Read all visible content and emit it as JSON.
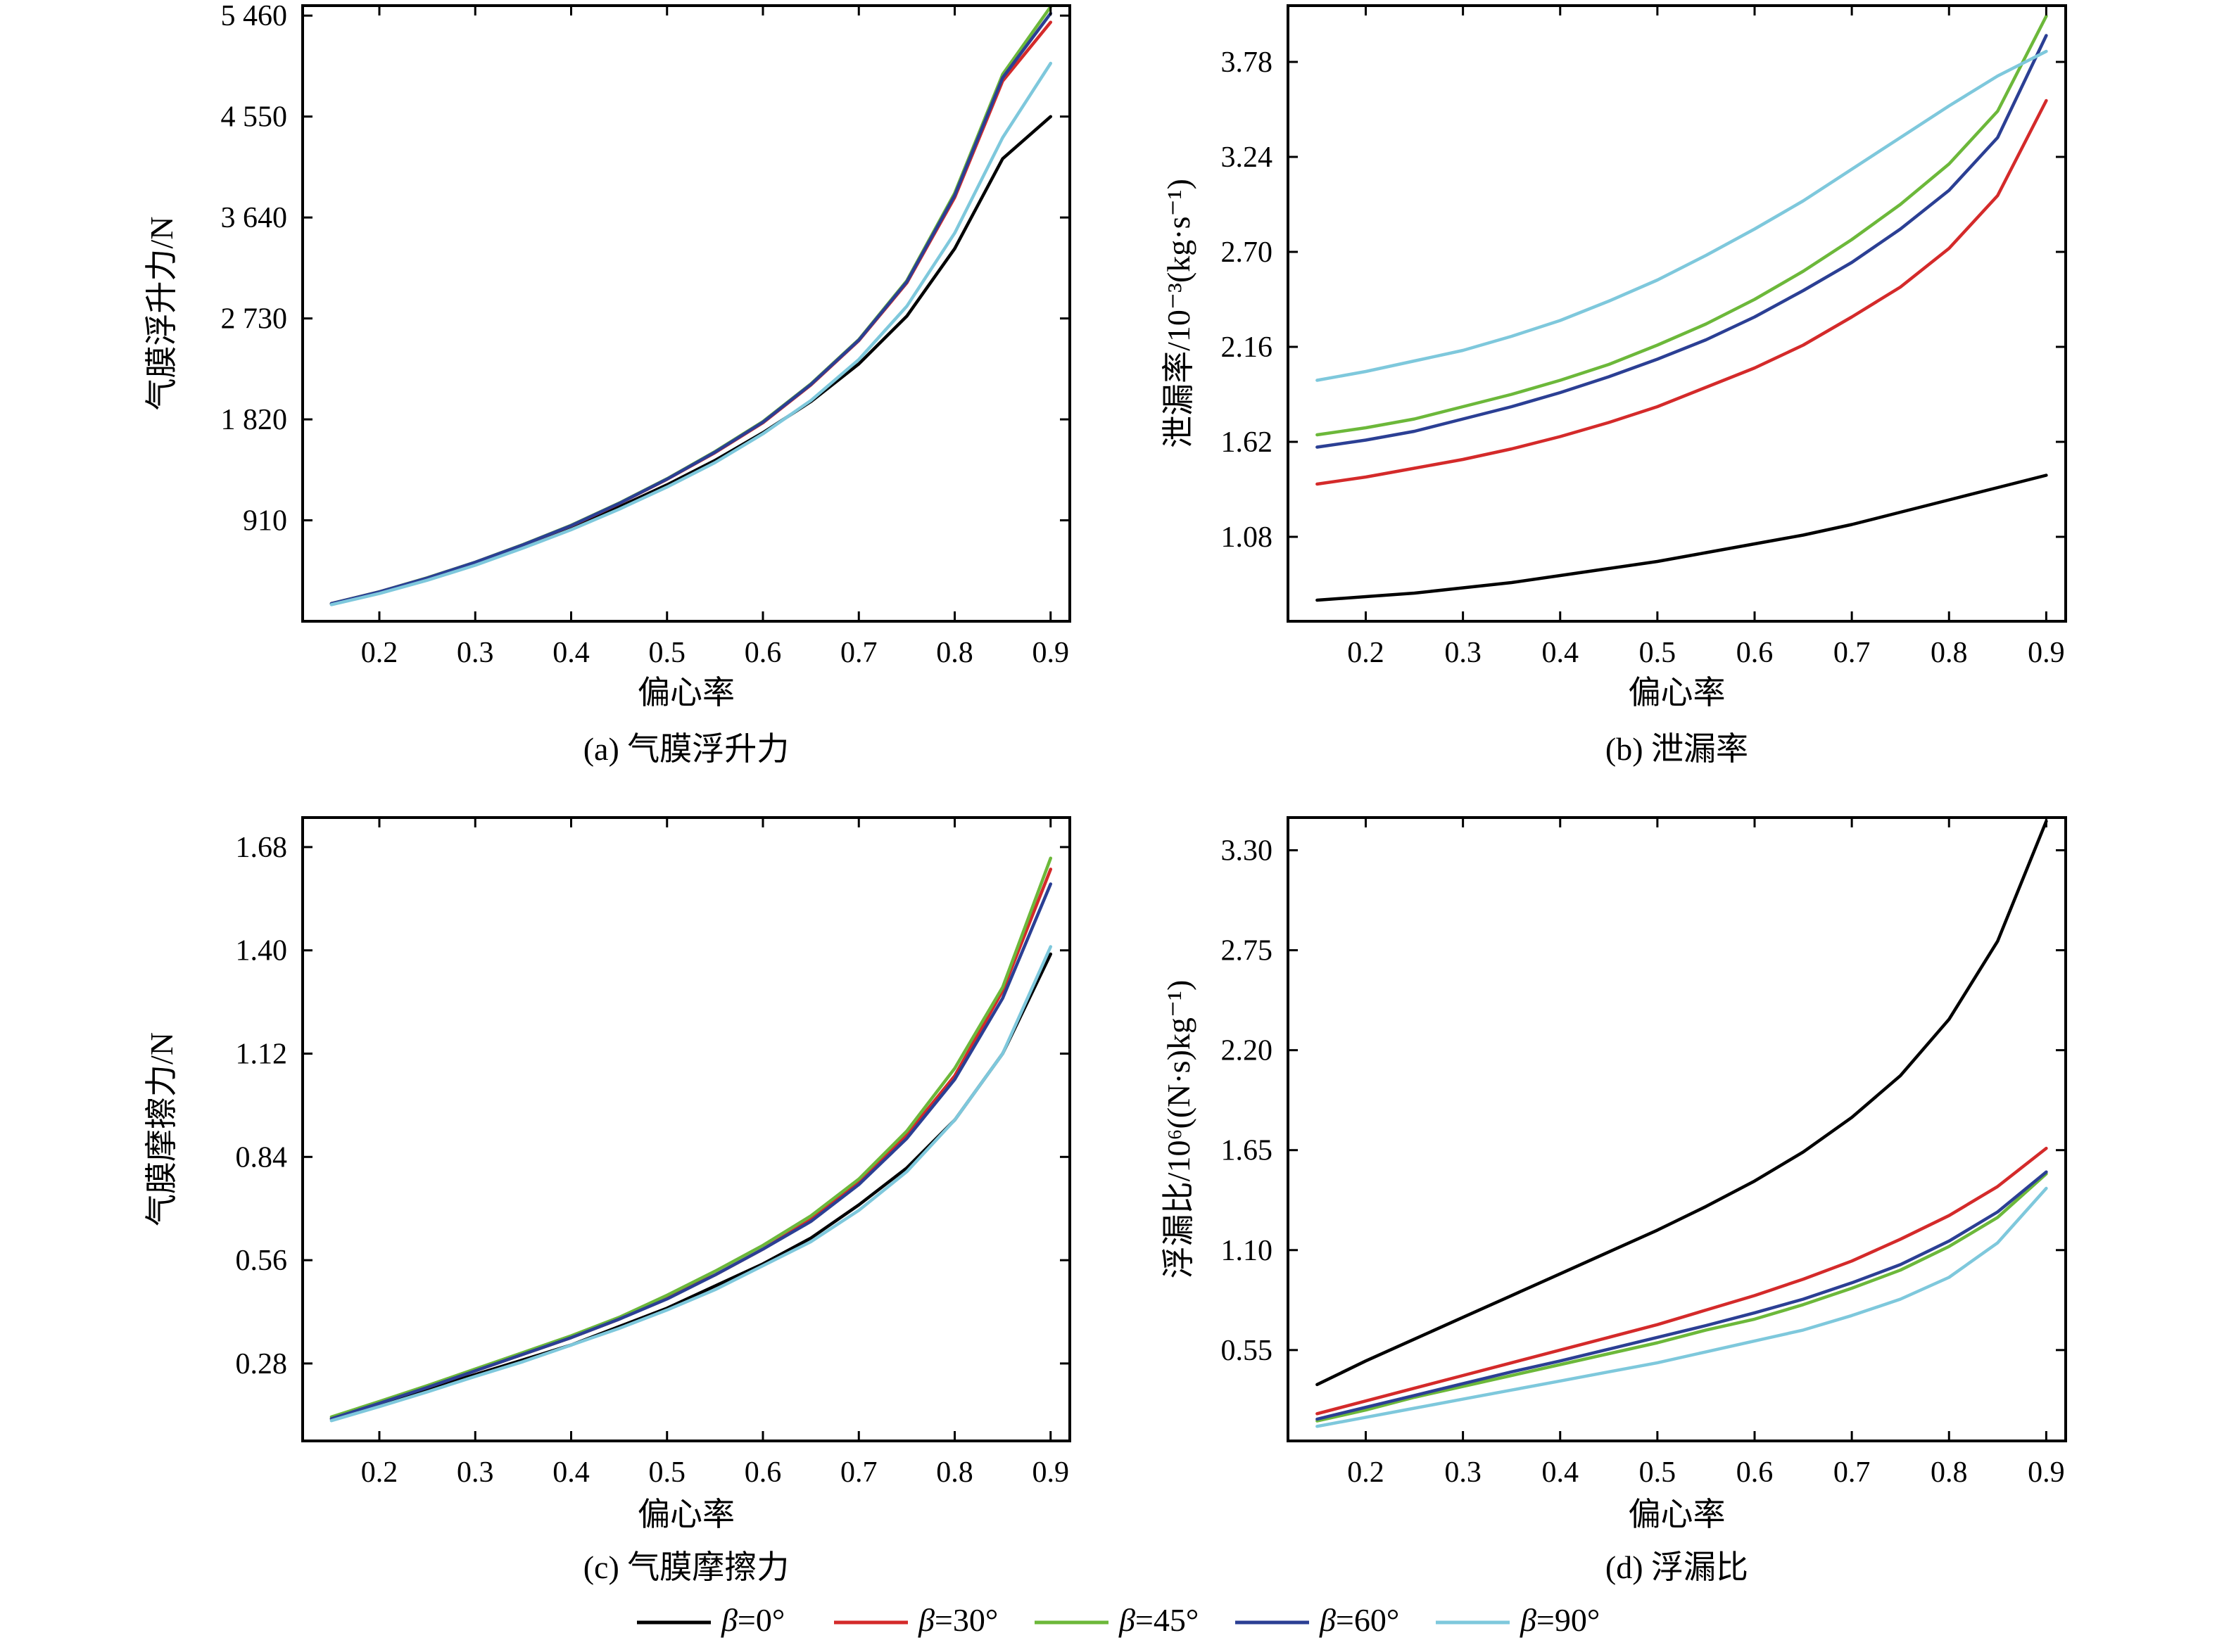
{
  "colors": {
    "b0": "#000000",
    "b30": "#d42a2a",
    "b45": "#6cb83a",
    "b60": "#2b3f94",
    "b90": "#7ec8dc"
  },
  "legend": [
    {
      "key": "b0",
      "prefix": "β",
      "label": "=0°"
    },
    {
      "key": "b30",
      "prefix": "β",
      "label": "=30°"
    },
    {
      "key": "b45",
      "prefix": "β",
      "label": "=45°"
    },
    {
      "key": "b60",
      "prefix": "β",
      "label": "=60°"
    },
    {
      "key": "b90",
      "prefix": "β",
      "label": "=90°"
    }
  ],
  "chart_data": [
    {
      "type": "line",
      "caption": "(a) 气膜浮升力",
      "xlabel": "偏心率",
      "ylabel": "气膜浮升力/N",
      "xlim": [
        0.12,
        0.92
      ],
      "ylim": [
        0,
        5550
      ],
      "xticks": [
        0.2,
        0.3,
        0.4,
        0.5,
        0.6,
        0.7,
        0.8,
        0.9
      ],
      "xtick_labels": [
        "0.2",
        "0.3",
        "0.4",
        "0.5",
        "0.6",
        "0.7",
        "0.8",
        "0.9"
      ],
      "yticks": [
        910,
        1820,
        2730,
        3640,
        4550,
        5460
      ],
      "ytick_labels": [
        "910",
        "1 820",
        "2 730",
        "3 640",
        "4 550",
        "5 460"
      ],
      "x": [
        0.15,
        0.2,
        0.25,
        0.3,
        0.35,
        0.4,
        0.45,
        0.5,
        0.55,
        0.6,
        0.65,
        0.7,
        0.75,
        0.8,
        0.85,
        0.9
      ],
      "series": [
        {
          "key": "b0",
          "name": "β=0°",
          "values": [
            155,
            260,
            380,
            520,
            670,
            840,
            1030,
            1230,
            1450,
            1700,
            1980,
            2320,
            2750,
            3360,
            4170,
            4550
          ]
        },
        {
          "key": "b30",
          "name": "β=30°",
          "values": [
            160,
            265,
            390,
            530,
            690,
            860,
            1060,
            1280,
            1520,
            1790,
            2130,
            2530,
            3050,
            3820,
            4870,
            5400
          ]
        },
        {
          "key": "b45",
          "name": "β=45°",
          "values": [
            160,
            266,
            392,
            533,
            692,
            865,
            1065,
            1285,
            1530,
            1800,
            2140,
            2540,
            3070,
            3860,
            4930,
            5540
          ]
        },
        {
          "key": "b60",
          "name": "β=60°",
          "values": [
            160,
            265,
            390,
            532,
            690,
            862,
            1062,
            1282,
            1525,
            1795,
            2135,
            2535,
            3060,
            3840,
            4900,
            5480
          ]
        },
        {
          "key": "b90",
          "name": "β=90°",
          "values": [
            150,
            250,
            370,
            505,
            660,
            825,
            1010,
            1210,
            1430,
            1690,
            1990,
            2360,
            2840,
            3500,
            4360,
            5030
          ]
        }
      ]
    },
    {
      "type": "line",
      "caption": "(b) 泄漏率",
      "xlabel": "偏心率",
      "ylabel": "泄漏率/10⁻³(kg·s⁻¹)",
      "xlim": [
        0.12,
        0.92
      ],
      "ylim": [
        0.6,
        4.1
      ],
      "xticks": [
        0.2,
        0.3,
        0.4,
        0.5,
        0.6,
        0.7,
        0.8,
        0.9
      ],
      "xtick_labels": [
        "0.2",
        "0.3",
        "0.4",
        "0.5",
        "0.6",
        "0.7",
        "0.8",
        "0.9"
      ],
      "yticks": [
        1.08,
        1.62,
        2.16,
        2.7,
        3.24,
        3.78
      ],
      "ytick_labels": [
        "1.08",
        "1.62",
        "2.16",
        "2.70",
        "3.24",
        "3.78"
      ],
      "x": [
        0.15,
        0.2,
        0.25,
        0.3,
        0.35,
        0.4,
        0.45,
        0.5,
        0.55,
        0.6,
        0.65,
        0.7,
        0.75,
        0.8,
        0.85,
        0.9
      ],
      "series": [
        {
          "key": "b0",
          "name": "β=0°",
          "values": [
            0.72,
            0.74,
            0.76,
            0.79,
            0.82,
            0.86,
            0.9,
            0.94,
            0.99,
            1.04,
            1.09,
            1.15,
            1.22,
            1.29,
            1.36,
            1.43
          ]
        },
        {
          "key": "b30",
          "name": "β=30°",
          "values": [
            1.38,
            1.42,
            1.47,
            1.52,
            1.58,
            1.65,
            1.73,
            1.82,
            1.93,
            2.04,
            2.17,
            2.33,
            2.5,
            2.72,
            3.02,
            3.56
          ]
        },
        {
          "key": "b45",
          "name": "β=45°",
          "values": [
            1.66,
            1.7,
            1.75,
            1.82,
            1.89,
            1.97,
            2.06,
            2.17,
            2.29,
            2.43,
            2.59,
            2.77,
            2.97,
            3.2,
            3.5,
            4.04
          ]
        },
        {
          "key": "b60",
          "name": "β=60°",
          "values": [
            1.59,
            1.63,
            1.68,
            1.75,
            1.82,
            1.9,
            1.99,
            2.09,
            2.2,
            2.33,
            2.48,
            2.64,
            2.83,
            3.05,
            3.35,
            3.93
          ]
        },
        {
          "key": "b90",
          "name": "β=90°",
          "values": [
            1.97,
            2.02,
            2.08,
            2.14,
            2.22,
            2.31,
            2.42,
            2.54,
            2.68,
            2.83,
            2.99,
            3.17,
            3.35,
            3.53,
            3.7,
            3.84
          ]
        }
      ]
    },
    {
      "type": "line",
      "caption": "(c) 气膜摩擦力",
      "xlabel": "偏心率",
      "ylabel": "气膜摩擦力/N",
      "xlim": [
        0.12,
        0.92
      ],
      "ylim": [
        0.07,
        1.76
      ],
      "xticks": [
        0.2,
        0.3,
        0.4,
        0.5,
        0.6,
        0.7,
        0.8,
        0.9
      ],
      "xtick_labels": [
        "0.2",
        "0.3",
        "0.4",
        "0.5",
        "0.6",
        "0.7",
        "0.8",
        "0.9"
      ],
      "yticks": [
        0.28,
        0.56,
        0.84,
        1.12,
        1.4,
        1.68
      ],
      "ytick_labels": [
        "0.28",
        "0.56",
        "0.84",
        "1.12",
        "1.40",
        "1.68"
      ],
      "x": [
        0.15,
        0.2,
        0.25,
        0.3,
        0.35,
        0.4,
        0.45,
        0.5,
        0.55,
        0.6,
        0.65,
        0.7,
        0.75,
        0.8,
        0.85,
        0.9
      ],
      "series": [
        {
          "key": "b0",
          "name": "β=0°",
          "values": [
            0.13,
            0.17,
            0.21,
            0.25,
            0.29,
            0.33,
            0.38,
            0.43,
            0.49,
            0.55,
            0.62,
            0.71,
            0.81,
            0.94,
            1.12,
            1.39
          ]
        },
        {
          "key": "b30",
          "name": "β=30°",
          "values": [
            0.13,
            0.175,
            0.215,
            0.26,
            0.305,
            0.35,
            0.4,
            0.46,
            0.52,
            0.59,
            0.67,
            0.77,
            0.9,
            1.06,
            1.29,
            1.62
          ]
        },
        {
          "key": "b45",
          "name": "β=45°",
          "values": [
            0.135,
            0.177,
            0.22,
            0.265,
            0.31,
            0.355,
            0.405,
            0.465,
            0.53,
            0.6,
            0.68,
            0.78,
            0.91,
            1.08,
            1.3,
            1.65
          ]
        },
        {
          "key": "b60",
          "name": "β=60°",
          "values": [
            0.13,
            0.172,
            0.215,
            0.26,
            0.305,
            0.35,
            0.4,
            0.455,
            0.52,
            0.59,
            0.665,
            0.765,
            0.89,
            1.05,
            1.27,
            1.58
          ]
        },
        {
          "key": "b90",
          "name": "β=90°",
          "values": [
            0.125,
            0.163,
            0.203,
            0.245,
            0.285,
            0.33,
            0.375,
            0.425,
            0.48,
            0.545,
            0.61,
            0.695,
            0.8,
            0.94,
            1.12,
            1.41
          ]
        }
      ]
    },
    {
      "type": "line",
      "caption": "(d) 浮漏比",
      "xlabel": "偏心率",
      "ylabel": "浮漏比/10⁶((N·s)kg⁻¹)",
      "xlim": [
        0.12,
        0.92
      ],
      "ylim": [
        0.05,
        3.48
      ],
      "xticks": [
        0.2,
        0.3,
        0.4,
        0.5,
        0.6,
        0.7,
        0.8,
        0.9
      ],
      "xtick_labels": [
        "0.2",
        "0.3",
        "0.4",
        "0.5",
        "0.6",
        "0.7",
        "0.8",
        "0.9"
      ],
      "yticks": [
        0.55,
        1.1,
        1.65,
        2.2,
        2.75,
        3.3
      ],
      "ytick_labels": [
        "0.55",
        "1.10",
        "1.65",
        "2.20",
        "2.75",
        "3.30"
      ],
      "x": [
        0.15,
        0.2,
        0.25,
        0.3,
        0.35,
        0.4,
        0.45,
        0.5,
        0.55,
        0.6,
        0.65,
        0.7,
        0.75,
        0.8,
        0.85,
        0.9
      ],
      "series": [
        {
          "key": "b0",
          "name": "β=0°",
          "values": [
            0.36,
            0.49,
            0.61,
            0.73,
            0.85,
            0.97,
            1.09,
            1.21,
            1.34,
            1.48,
            1.64,
            1.83,
            2.06,
            2.37,
            2.8,
            3.46
          ]
        },
        {
          "key": "b30",
          "name": "β=30°",
          "values": [
            0.2,
            0.27,
            0.34,
            0.41,
            0.48,
            0.55,
            0.62,
            0.69,
            0.77,
            0.85,
            0.94,
            1.04,
            1.16,
            1.29,
            1.45,
            1.66
          ]
        },
        {
          "key": "b45",
          "name": "β=45°",
          "values": [
            0.16,
            0.22,
            0.29,
            0.35,
            0.41,
            0.47,
            0.53,
            0.59,
            0.66,
            0.72,
            0.8,
            0.89,
            0.99,
            1.12,
            1.28,
            1.52
          ]
        },
        {
          "key": "b60",
          "name": "β=60°",
          "values": [
            0.17,
            0.235,
            0.3,
            0.365,
            0.43,
            0.49,
            0.555,
            0.62,
            0.685,
            0.755,
            0.83,
            0.92,
            1.02,
            1.15,
            1.31,
            1.53
          ]
        },
        {
          "key": "b90",
          "name": "β=90°",
          "values": [
            0.13,
            0.18,
            0.23,
            0.28,
            0.33,
            0.38,
            0.43,
            0.48,
            0.54,
            0.6,
            0.66,
            0.74,
            0.83,
            0.95,
            1.14,
            1.44
          ]
        }
      ]
    }
  ]
}
